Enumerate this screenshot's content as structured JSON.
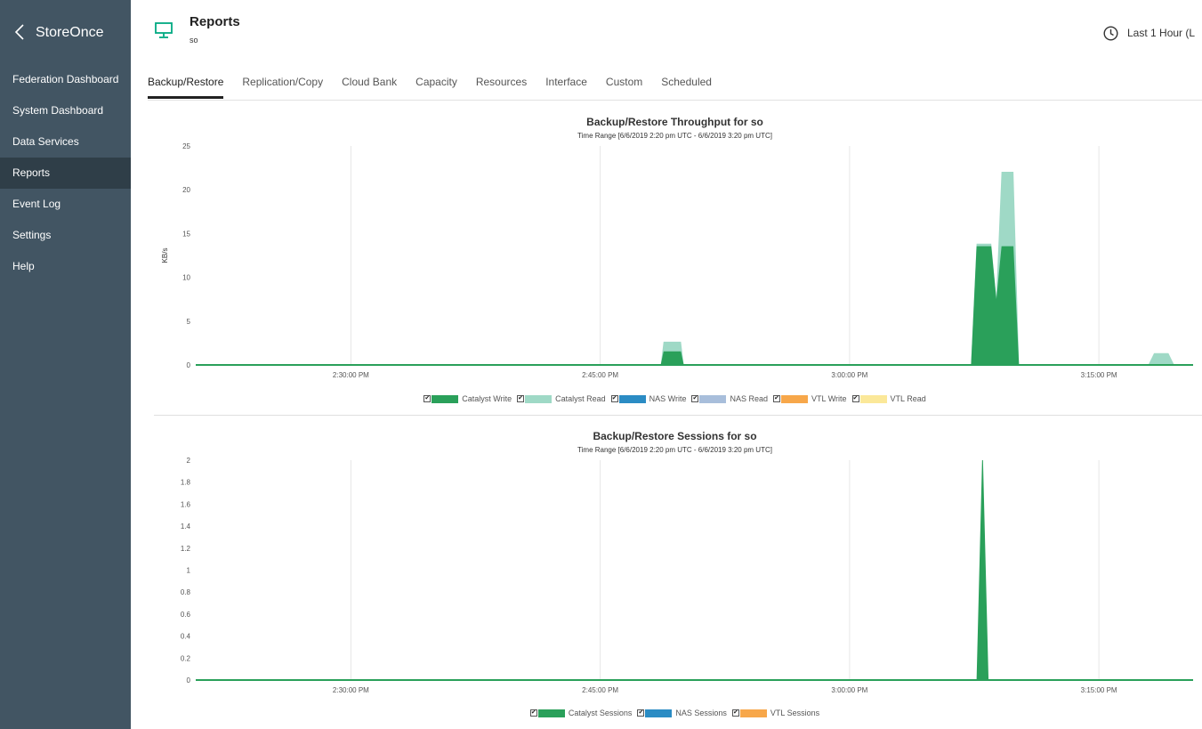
{
  "sidebar": {
    "brand": "StoreOnce",
    "items": [
      {
        "label": "Federation Dashboard",
        "active": false
      },
      {
        "label": "System Dashboard",
        "active": false
      },
      {
        "label": "Data Services",
        "active": false
      },
      {
        "label": "Reports",
        "active": true
      },
      {
        "label": "Event Log",
        "active": false
      },
      {
        "label": "Settings",
        "active": false
      },
      {
        "label": "Help",
        "active": false
      }
    ]
  },
  "header": {
    "icon": "monitor-icon",
    "title": "Reports",
    "subtitle": "so",
    "time_range_label": "Last 1 Hour (L"
  },
  "tabs": [
    {
      "label": "Backup/Restore",
      "active": true
    },
    {
      "label": "Replication/Copy",
      "active": false
    },
    {
      "label": "Cloud Bank",
      "active": false
    },
    {
      "label": "Capacity",
      "active": false
    },
    {
      "label": "Resources",
      "active": false
    },
    {
      "label": "Interface",
      "active": false
    },
    {
      "label": "Custom",
      "active": false
    },
    {
      "label": "Scheduled",
      "active": false
    }
  ],
  "chart_data": [
    {
      "type": "area",
      "title": "Backup/Restore Throughput for so",
      "subtitle": "Time Range [6/6/2019 2:20 pm UTC - 6/6/2019 3:20 pm UTC]",
      "ylabel": "KB/s",
      "xlabel": "",
      "ylim": [
        0,
        25
      ],
      "yticks": [
        0,
        5,
        10,
        15,
        20,
        25
      ],
      "xlim": [
        "14:20:40",
        "15:20:40"
      ],
      "xticks": [
        {
          "t": "14:30:00",
          "label": "2:30:00 PM"
        },
        {
          "t": "14:45:00",
          "label": "2:45:00 PM"
        },
        {
          "t": "15:00:00",
          "label": "3:00:00 PM"
        },
        {
          "t": "15:15:00",
          "label": "3:15:00 PM"
        }
      ],
      "grid": "vertical",
      "legend_position": "bottom",
      "series": [
        {
          "name": "Catalyst Write",
          "color": "#2aa05a",
          "stacked_base": true,
          "points": [
            [
              "14:20:40",
              0
            ],
            [
              "14:48:40",
              0
            ],
            [
              "14:48:50",
              1.5
            ],
            [
              "14:49:50",
              1.5
            ],
            [
              "14:50:00",
              0
            ],
            [
              "15:07:20",
              0
            ],
            [
              "15:07:40",
              13.5
            ],
            [
              "15:08:30",
              13.5
            ],
            [
              "15:08:50",
              7
            ],
            [
              "15:09:10",
              13.5
            ],
            [
              "15:09:50",
              13.5
            ],
            [
              "15:10:10",
              0
            ],
            [
              "15:20:40",
              0
            ]
          ]
        },
        {
          "name": "Catalyst Read",
          "color": "#9fd9c6",
          "stacked_base": false,
          "points": [
            [
              "14:20:40",
              0
            ],
            [
              "14:48:40",
              0
            ],
            [
              "14:48:50",
              2.6
            ],
            [
              "14:49:50",
              2.6
            ],
            [
              "14:50:00",
              0
            ],
            [
              "15:07:20",
              0
            ],
            [
              "15:07:40",
              13.8
            ],
            [
              "15:08:30",
              13.8
            ],
            [
              "15:08:50",
              7
            ],
            [
              "15:09:10",
              22
            ],
            [
              "15:09:50",
              22
            ],
            [
              "15:10:10",
              0
            ],
            [
              "15:18:00",
              0
            ],
            [
              "15:18:20",
              1.3
            ],
            [
              "15:19:10",
              1.3
            ],
            [
              "15:19:30",
              0
            ],
            [
              "15:20:40",
              0
            ]
          ]
        },
        {
          "name": "NAS Write",
          "color": "#2b8cc4",
          "stacked_base": false,
          "points": []
        },
        {
          "name": "NAS Read",
          "color": "#a8bedb",
          "stacked_base": false,
          "points": []
        },
        {
          "name": "VTL Write",
          "color": "#f7a74a",
          "stacked_base": false,
          "points": []
        },
        {
          "name": "VTL Read",
          "color": "#fbe899",
          "stacked_base": false,
          "points": []
        }
      ]
    },
    {
      "type": "area",
      "title": "Backup/Restore Sessions for so",
      "subtitle": "Time Range [6/6/2019 2:20 pm UTC - 6/6/2019 3:20 pm UTC]",
      "ylabel": "",
      "xlabel": "",
      "ylim": [
        0,
        2
      ],
      "yticks": [
        0,
        0.2,
        0.4,
        0.6,
        0.8,
        1,
        1.2,
        1.4,
        1.6,
        1.8,
        2
      ],
      "xlim": [
        "14:20:40",
        "15:20:40"
      ],
      "xticks": [
        {
          "t": "14:30:00",
          "label": "2:30:00 PM"
        },
        {
          "t": "14:45:00",
          "label": "2:45:00 PM"
        },
        {
          "t": "15:00:00",
          "label": "3:00:00 PM"
        },
        {
          "t": "15:15:00",
          "label": "3:15:00 PM"
        }
      ],
      "grid": "vertical",
      "legend_position": "bottom",
      "series": [
        {
          "name": "Catalyst Sessions",
          "color": "#2aa05a",
          "stacked_base": true,
          "points": [
            [
              "14:20:40",
              0
            ],
            [
              "15:07:40",
              0
            ],
            [
              "15:07:50",
              1
            ],
            [
              "15:08:00",
              2
            ],
            [
              "15:08:10",
              1
            ],
            [
              "15:08:20",
              0
            ],
            [
              "15:20:40",
              0
            ]
          ]
        },
        {
          "name": "NAS Sessions",
          "color": "#2b8cc4",
          "stacked_base": false,
          "points": []
        },
        {
          "name": "VTL Sessions",
          "color": "#f7a74a",
          "stacked_base": false,
          "points": []
        }
      ]
    }
  ]
}
